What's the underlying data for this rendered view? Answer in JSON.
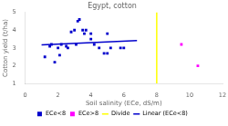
{
  "chart_data": {
    "type": "scatter",
    "title": "Egypt, cotton",
    "xlabel": "Soil salinity (ECe, dS/m)",
    "ylabel": "Cotton yield (t/ha)",
    "xlim": [
      0,
      12
    ],
    "ylim": [
      1,
      5
    ],
    "xticks": [
      0,
      2,
      4,
      6,
      8,
      10,
      12
    ],
    "yticks": [
      1,
      2,
      3,
      4,
      5
    ],
    "grid": false,
    "legend": "bottom",
    "series": [
      {
        "name": "ECe<8",
        "type": "scatter",
        "color": "#0000cc",
        "marker": "square",
        "x": [
          1.2,
          1.5,
          1.6,
          1.8,
          2.0,
          2.1,
          2.2,
          2.5,
          2.6,
          2.8,
          3.0,
          3.1,
          3.2,
          3.3,
          3.5,
          3.6,
          3.7,
          4.0,
          4.0,
          4.2,
          4.5,
          4.8,
          5.0,
          5.0,
          5.2,
          5.8,
          6.0
        ],
        "values": [
          2.5,
          3.1,
          3.2,
          2.2,
          3.0,
          2.6,
          3.2,
          3.1,
          3.0,
          3.9,
          4.0,
          3.2,
          4.5,
          4.6,
          4.0,
          3.8,
          4.0,
          3.8,
          3.5,
          3.2,
          3.0,
          2.7,
          3.8,
          2.7,
          3.0,
          3.0,
          3.0
        ]
      },
      {
        "name": "ECe>8",
        "type": "scatter",
        "color": "#ff00ff",
        "marker": "square",
        "x": [
          9.5,
          10.5
        ],
        "values": [
          3.2,
          2.0
        ]
      },
      {
        "name": "Divide",
        "type": "vline",
        "color": "#ffff00",
        "line_style": "solid",
        "x": [
          8.0
        ]
      },
      {
        "name": "Linear (ECe<8)",
        "type": "line",
        "color": "#0000cc",
        "line_style": "solid",
        "x": [
          1.0,
          6.8
        ],
        "values": [
          3.18,
          3.42
        ]
      }
    ]
  }
}
